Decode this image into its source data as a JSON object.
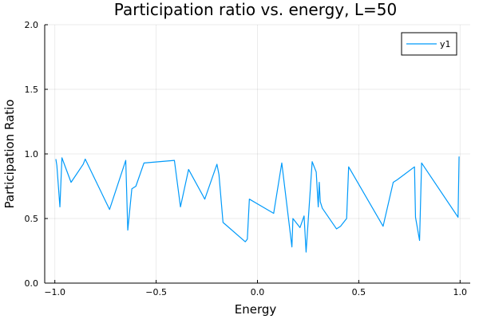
{
  "chart_data": {
    "type": "line",
    "title": "Participation ratio vs. energy, L=50",
    "xlabel": "Energy",
    "ylabel": "Participation Ratio",
    "xlim": [
      -1.05,
      1.05
    ],
    "ylim": [
      0.0,
      2.0
    ],
    "xticks": [
      -1.0,
      -0.5,
      0.0,
      0.5,
      1.0
    ],
    "xtick_labels": [
      "−1.0",
      "−0.5",
      "0.0",
      "0.5",
      "1.0"
    ],
    "yticks": [
      0.0,
      0.5,
      1.0,
      1.5,
      2.0
    ],
    "ytick_labels": [
      "0.0",
      "0.5",
      "1.0",
      "1.5",
      "2.0"
    ],
    "grid": true,
    "legend": "top-right",
    "series": [
      {
        "name": "y1",
        "color": "#009AFA",
        "x": [
          -0.995,
          -0.99,
          -0.975,
          -0.965,
          -0.92,
          -0.86,
          -0.85,
          -0.73,
          -0.65,
          -0.64,
          -0.62,
          -0.6,
          -0.56,
          -0.41,
          -0.38,
          -0.34,
          -0.26,
          -0.2,
          -0.19,
          -0.17,
          -0.06,
          -0.05,
          -0.04,
          0.08,
          0.12,
          0.17,
          0.175,
          0.21,
          0.23,
          0.24,
          0.27,
          0.29,
          0.3,
          0.305,
          0.31,
          0.32,
          0.39,
          0.41,
          0.44,
          0.45,
          0.62,
          0.67,
          0.69,
          0.775,
          0.78,
          0.8,
          0.81,
          0.99,
          0.995
        ],
        "y": [
          0.96,
          0.91,
          0.59,
          0.97,
          0.78,
          0.92,
          0.96,
          0.57,
          0.95,
          0.41,
          0.73,
          0.75,
          0.93,
          0.95,
          0.59,
          0.88,
          0.65,
          0.92,
          0.84,
          0.47,
          0.32,
          0.34,
          0.65,
          0.54,
          0.93,
          0.28,
          0.5,
          0.43,
          0.52,
          0.24,
          0.94,
          0.86,
          0.59,
          0.78,
          0.63,
          0.58,
          0.42,
          0.44,
          0.5,
          0.9,
          0.44,
          0.78,
          0.8,
          0.9,
          0.51,
          0.33,
          0.93,
          0.51,
          0.98
        ]
      }
    ]
  }
}
